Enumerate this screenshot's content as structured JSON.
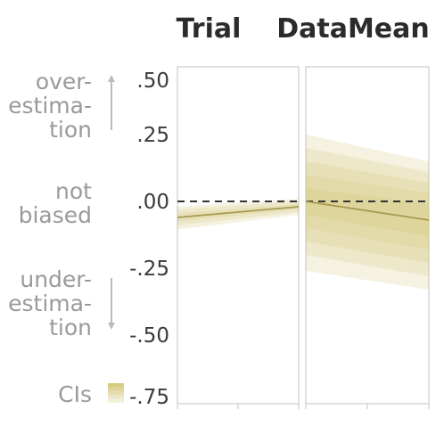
{
  "chart_data": {
    "type": "line",
    "panels": [
      {
        "title": "Trial",
        "series": [
          {
            "x": [
              0,
              1
            ],
            "y": [
              -0.06,
              -0.02
            ]
          }
        ],
        "ci_bands": [
          {
            "level": 1,
            "lower": [
              -0.075,
              -0.03
            ],
            "upper": [
              -0.045,
              -0.01
            ]
          },
          {
            "level": 2,
            "lower": [
              -0.09,
              -0.04
            ],
            "upper": [
              -0.03,
              0.0
            ]
          },
          {
            "level": 3,
            "lower": [
              -0.105,
              -0.05
            ],
            "upper": [
              -0.02,
              0.01
            ]
          }
        ]
      },
      {
        "title": "DataMean",
        "series": [
          {
            "x": [
              0,
              1
            ],
            "y": [
              0.0,
              -0.07
            ]
          }
        ],
        "ci_bands": [
          {
            "level": 1,
            "lower": [
              -0.05,
              -0.13
            ],
            "upper": [
              0.05,
              -0.01
            ]
          },
          {
            "level": 2,
            "lower": [
              -0.1,
              -0.18
            ],
            "upper": [
              0.1,
              0.03
            ]
          },
          {
            "level": 3,
            "lower": [
              -0.15,
              -0.23
            ],
            "upper": [
              0.15,
              0.07
            ]
          },
          {
            "level": 4,
            "lower": [
              -0.2,
              -0.28
            ],
            "upper": [
              0.2,
              0.11
            ]
          },
          {
            "level": 5,
            "lower": [
              -0.26,
              -0.33
            ],
            "upper": [
              0.25,
              0.15
            ]
          }
        ]
      }
    ],
    "ylim": [
      -0.75,
      0.5
    ],
    "yticks": [
      0.5,
      0.25,
      0.0,
      -0.25,
      -0.5,
      -0.75
    ],
    "ytick_labels": [
      ".50",
      ".25",
      ".00",
      "-.25",
      "-.50",
      "-.75"
    ],
    "reference_line": {
      "y": 0.0,
      "style": "dashed"
    },
    "y_group_labels": [
      {
        "lines": [
          "over-",
          "estima-",
          "tion"
        ],
        "arrow": "up"
      },
      {
        "lines": [
          "not",
          "biased"
        ],
        "arrow": "none"
      },
      {
        "lines": [
          "under-",
          "estima-",
          "tion"
        ],
        "arrow": "down"
      }
    ],
    "legend": {
      "label": "CIs"
    },
    "colors": {
      "band": "#d2c576",
      "line": "#a89a50",
      "frame": "#cccccc",
      "reference": "#333333",
      "annotation": "#9a9a9a"
    }
  }
}
